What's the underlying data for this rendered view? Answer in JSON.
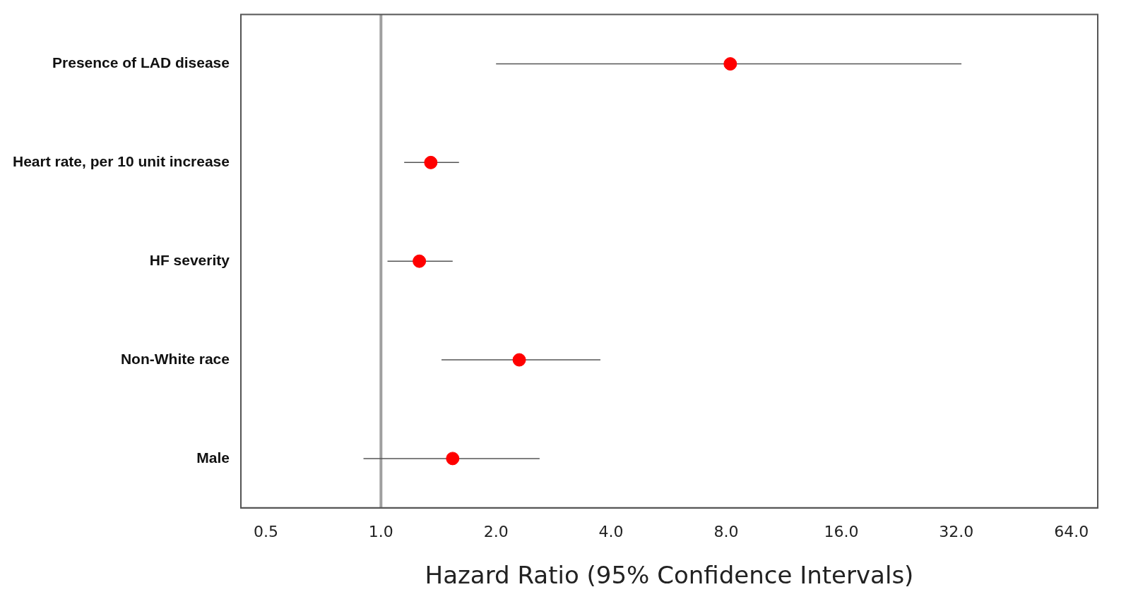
{
  "chart_data": {
    "type": "scatter",
    "orientation": "horizontal",
    "log": "x",
    "categories": [
      "Presence of LAD disease",
      "Heart rate, per 10 unit increase",
      "HF severity",
      "Non-White race",
      "Male"
    ],
    "values": [
      8.2,
      1.35,
      1.26,
      2.3,
      1.54
    ],
    "errors": [
      [
        2.0,
        33
      ],
      [
        1.15,
        1.6
      ],
      [
        1.04,
        1.54
      ],
      [
        1.44,
        3.75
      ],
      [
        0.9,
        2.6
      ]
    ],
    "color": "#ff0000",
    "marker": "circle",
    "xlim": [
      0.43,
      75
    ],
    "xticks": [
      {
        "value": 0.5,
        "label": "0.5"
      },
      {
        "value": 1,
        "label": "1.0"
      },
      {
        "value": 2,
        "label": "2.0"
      },
      {
        "value": 4,
        "label": "4.0"
      },
      {
        "value": 8,
        "label": "8.0"
      },
      {
        "value": 16,
        "label": "16.0"
      },
      {
        "value": 32,
        "label": "32.0"
      },
      {
        "value": 64,
        "label": "64.0"
      }
    ],
    "xlabel": "Hazard Ratio (95% Confidence Intervals)",
    "ref_lines": [
      {
        "axis": "x",
        "value": 1,
        "color": "#a0a0a0"
      }
    ],
    "grid": false,
    "legend": false
  }
}
